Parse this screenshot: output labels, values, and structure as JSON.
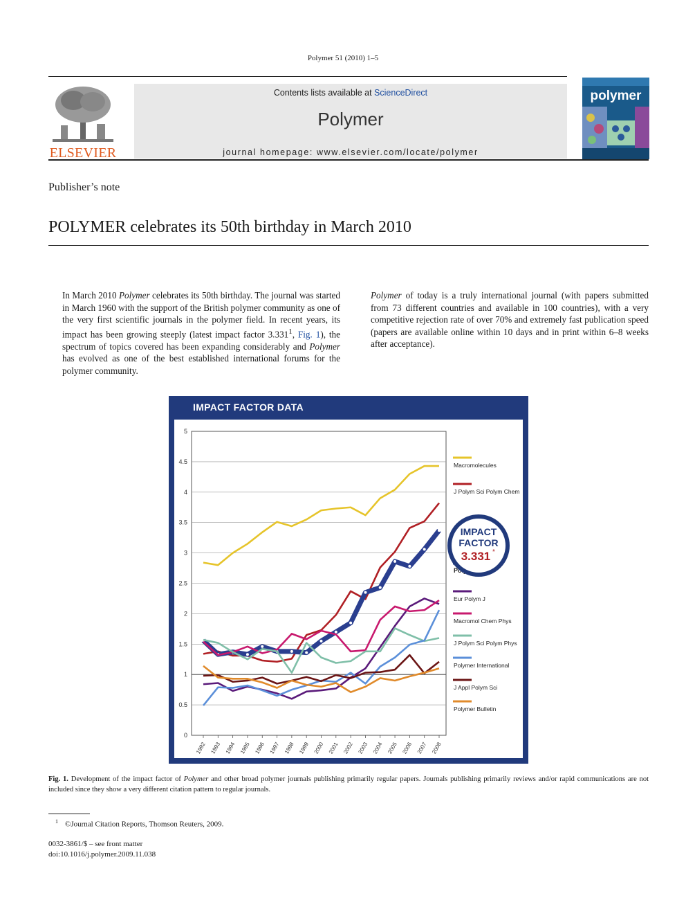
{
  "header": {
    "running_head": "Polymer 51 (2010) 1–5",
    "contents_prefix": "Contents lists available at ",
    "contents_link": "ScienceDirect",
    "journal_name": "Polymer",
    "homepage": "journal homepage: www.elsevier.com/locate/polymer",
    "publisher_logo_text": "ELSEVIER",
    "cover_title": "polymer"
  },
  "article": {
    "section": "Publisher’s note",
    "title": "POLYMER celebrates its 50th birthday in March 2010"
  },
  "body": {
    "left": {
      "p1": "In March 2010 ",
      "p1_em": "Polymer",
      "p2": " celebrates its 50th birthday. The journal was started in March 1960 with the support of the British polymer community as one of the very first scientific journals in the polymer field. In recent years, its impact has been growing steeply (latest impact factor 3.331",
      "p2_sup": "1",
      "p3": ", ",
      "fig_ref": "Fig. 1",
      "p4": "), the spectrum of topics covered has been expanding considerably and ",
      "p4_em": "Polymer",
      "p5": " has evolved as one of the best established international forums for the polymer community."
    },
    "right": {
      "p1_em": "Polymer",
      "p1": " of today is a truly international journal (with papers submitted from 73 different countries and available in 100 countries), with a very competitive rejection rate of over 70% and extremely fast publication speed (papers are available online within 10 days and in print within 6–8 weeks after acceptance)."
    }
  },
  "figure": {
    "header": "IMPACT FACTOR DATA",
    "badge": {
      "line1": "IMPACT",
      "line2": "FACTOR",
      "value": "3.331",
      "mark": "*"
    }
  },
  "caption": {
    "label": "Fig. 1.",
    "t1": " Development of the impact factor of ",
    "em": "Polymer",
    "t2": " and other broad polymer journals publishing primarily regular papers. Journals publishing primarily reviews and/or rapid communications are not included since they show a very different citation pattern to regular journals."
  },
  "footnote": {
    "mark": "1",
    "text": "©Journal Citation Reports, Thomson Reuters, 2009."
  },
  "front_matter": {
    "issn": "0032-3861/$ – see front matter",
    "doi": "doi:10.1016/j.polymer.2009.11.038"
  },
  "chart_data": {
    "type": "line",
    "title": "IMPACT FACTOR DATA",
    "xlabel": "",
    "ylabel": "",
    "ylim": [
      0,
      5
    ],
    "yticks": [
      "0",
      "0.5",
      "1",
      "1.5",
      "2",
      "2.5",
      "3",
      "3.5",
      "4",
      "4.5",
      "5"
    ],
    "grid": true,
    "legend_position": "right",
    "x": [
      "1992",
      "1993",
      "1994",
      "1995",
      "1996",
      "1997",
      "1998",
      "1999",
      "2000",
      "2001",
      "2002",
      "2003",
      "2004",
      "2005",
      "2006",
      "2007",
      "2008"
    ],
    "series": [
      {
        "name": "Macromolecules",
        "color": "#e6c42a",
        "values": [
          2.84,
          2.8,
          3.0,
          3.15,
          3.34,
          3.51,
          3.44,
          3.55,
          3.7,
          3.73,
          3.75,
          3.62,
          3.9,
          4.04,
          4.3,
          4.43,
          4.43
        ]
      },
      {
        "name": "J Polym Sci Polym Chem",
        "color": "#b01f24",
        "values": [
          1.34,
          1.38,
          1.31,
          1.31,
          1.23,
          1.21,
          1.26,
          1.65,
          1.73,
          1.98,
          2.37,
          2.24,
          2.76,
          3.02,
          3.41,
          3.52,
          3.82
        ]
      },
      {
        "name": "Polymer",
        "color": "#2a3e8f",
        "thick": true,
        "values": [
          1.56,
          1.33,
          1.37,
          1.33,
          1.46,
          1.38,
          1.38,
          1.36,
          1.55,
          1.7,
          1.85,
          2.35,
          2.43,
          2.86,
          2.78,
          3.06,
          3.37
        ]
      },
      {
        "name": "Eur Polym J",
        "color": "#5a1a7a",
        "values": [
          0.84,
          0.86,
          0.73,
          0.8,
          0.75,
          0.69,
          0.6,
          0.72,
          0.74,
          0.77,
          0.95,
          1.1,
          1.45,
          1.8,
          2.12,
          2.25,
          2.16
        ]
      },
      {
        "name": "Macromol Chem Phys",
        "color": "#c8196e",
        "values": [
          1.54,
          1.32,
          1.37,
          1.46,
          1.35,
          1.41,
          1.67,
          1.58,
          1.72,
          1.66,
          1.38,
          1.4,
          1.9,
          2.12,
          2.04,
          2.06,
          2.22
        ]
      },
      {
        "name": "J Polym Sci Polym Phys",
        "color": "#7fbfa8",
        "values": [
          1.57,
          1.52,
          1.37,
          1.25,
          1.42,
          1.38,
          1.03,
          1.52,
          1.28,
          1.19,
          1.22,
          1.38,
          1.38,
          1.76,
          1.65,
          1.55,
          1.6
        ]
      },
      {
        "name": "Polymer International",
        "color": "#5b8fd9",
        "values": [
          0.49,
          0.79,
          0.78,
          0.82,
          0.74,
          0.65,
          0.75,
          0.82,
          0.9,
          0.88,
          1.03,
          0.85,
          1.13,
          1.28,
          1.49,
          1.56,
          2.06
        ]
      },
      {
        "name": "J Appl Polym Sci",
        "color": "#6b1515",
        "values": [
          0.98,
          0.99,
          0.88,
          0.9,
          0.95,
          0.85,
          0.9,
          0.96,
          0.89,
          0.99,
          0.94,
          1.03,
          1.04,
          1.08,
          1.32,
          1.02,
          1.21
        ]
      },
      {
        "name": "Polymer Bulletin",
        "color": "#e08a2a",
        "values": [
          1.14,
          0.95,
          0.93,
          0.93,
          0.87,
          0.78,
          0.9,
          0.83,
          0.8,
          0.86,
          0.71,
          0.8,
          0.94,
          0.9,
          0.97,
          1.03,
          1.1
        ]
      }
    ]
  }
}
